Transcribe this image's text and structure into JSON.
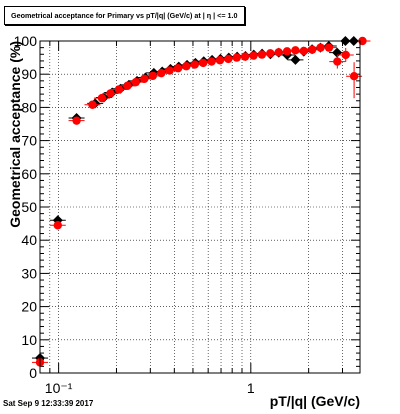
{
  "title": "Geometrical acceptance for Primary vs pT/|q| (GeV/c) at | η | <= 1.0",
  "timestamp": "Sat Sep  9 12:33:39 2017",
  "chart_data": {
    "type": "scatter",
    "title": "Geometrical acceptance for Primary vs pT/|q| (GeV/c) at | η | <= 1.0",
    "xlabel": "pT/|q| (GeV/c)",
    "ylabel": "Geometrical acceptance (%)",
    "xscale": "log",
    "xlim": [
      0.08,
      3.7
    ],
    "ylim": [
      0,
      100
    ],
    "x_tick_labels": [
      {
        "value": 0.1,
        "label": "10⁻¹"
      },
      {
        "value": 1,
        "label": "1"
      }
    ],
    "y_ticks": [
      0,
      10,
      20,
      30,
      40,
      50,
      60,
      70,
      80,
      90,
      100
    ],
    "grid": true,
    "colors": {
      "series_black": "#000000",
      "series_red": "#ff0000"
    },
    "series": [
      {
        "color": "#000000",
        "marker": "diamond",
        "points": [
          {
            "x": 0.08,
            "y": 4.5
          },
          {
            "x": 0.099,
            "y": 46.0
          },
          {
            "x": 0.124,
            "y": 76.8
          },
          {
            "x": 0.155,
            "y": 81.2
          },
          {
            "x": 0.172,
            "y": 83.0
          },
          {
            "x": 0.19,
            "y": 84.5
          },
          {
            "x": 0.21,
            "y": 85.6
          },
          {
            "x": 0.232,
            "y": 86.8
          },
          {
            "x": 0.256,
            "y": 88.0
          },
          {
            "x": 0.283,
            "y": 89.0
          },
          {
            "x": 0.313,
            "y": 90.4
          },
          {
            "x": 0.346,
            "y": 90.8
          },
          {
            "x": 0.382,
            "y": 91.6
          },
          {
            "x": 0.422,
            "y": 92.3
          },
          {
            "x": 0.466,
            "y": 92.8
          },
          {
            "x": 0.515,
            "y": 93.4
          },
          {
            "x": 0.569,
            "y": 93.9
          },
          {
            "x": 0.629,
            "y": 94.3
          },
          {
            "x": 0.695,
            "y": 94.6
          },
          {
            "x": 0.768,
            "y": 95.0
          },
          {
            "x": 0.849,
            "y": 95.3
          },
          {
            "x": 0.938,
            "y": 95.5
          },
          {
            "x": 1.036,
            "y": 95.9
          },
          {
            "x": 1.145,
            "y": 96.2
          },
          {
            "x": 1.265,
            "y": 96.0
          },
          {
            "x": 1.398,
            "y": 96.5
          },
          {
            "x": 1.545,
            "y": 95.8
          },
          {
            "x": 1.707,
            "y": 94.3
          },
          {
            "x": 1.886,
            "y": 96.8
          },
          {
            "x": 2.084,
            "y": 97.5
          },
          {
            "x": 2.303,
            "y": 98.0
          },
          {
            "x": 2.545,
            "y": 98.5
          },
          {
            "x": 2.812,
            "y": 96.5
          },
          {
            "x": 3.107,
            "y": 100.0
          },
          {
            "x": 3.433,
            "y": 100.0
          }
        ]
      },
      {
        "color": "#ff0000",
        "marker": "circle",
        "points": [
          {
            "x": 0.08,
            "y": 3.2
          },
          {
            "x": 0.099,
            "y": 44.5
          },
          {
            "x": 0.124,
            "y": 76.0
          },
          {
            "x": 0.15,
            "y": 80.8
          },
          {
            "x": 0.168,
            "y": 82.8
          },
          {
            "x": 0.186,
            "y": 84.2
          },
          {
            "x": 0.206,
            "y": 85.4
          },
          {
            "x": 0.228,
            "y": 86.5
          },
          {
            "x": 0.252,
            "y": 87.6
          },
          {
            "x": 0.279,
            "y": 88.6
          },
          {
            "x": 0.309,
            "y": 89.5
          },
          {
            "x": 0.342,
            "y": 90.3
          },
          {
            "x": 0.378,
            "y": 91.1
          },
          {
            "x": 0.418,
            "y": 91.8
          },
          {
            "x": 0.462,
            "y": 92.4
          },
          {
            "x": 0.511,
            "y": 92.9
          },
          {
            "x": 0.565,
            "y": 93.4
          },
          {
            "x": 0.625,
            "y": 93.8
          },
          {
            "x": 0.691,
            "y": 94.2
          },
          {
            "x": 0.764,
            "y": 94.6
          },
          {
            "x": 0.845,
            "y": 95.0
          },
          {
            "x": 0.934,
            "y": 95.3
          },
          {
            "x": 1.033,
            "y": 95.6
          },
          {
            "x": 1.142,
            "y": 95.9
          },
          {
            "x": 1.263,
            "y": 96.3
          },
          {
            "x": 1.396,
            "y": 96.6
          },
          {
            "x": 1.544,
            "y": 96.9
          },
          {
            "x": 1.707,
            "y": 97.2
          },
          {
            "x": 1.887,
            "y": 97.0
          },
          {
            "x": 2.087,
            "y": 97.4
          },
          {
            "x": 2.307,
            "y": 98.0
          },
          {
            "x": 2.551,
            "y": 98.0
          },
          {
            "x": 2.82,
            "y": 93.8
          },
          {
            "x": 3.118,
            "y": 95.8
          },
          {
            "x": 3.447,
            "y": 89.4
          },
          {
            "x": 3.811,
            "y": 100.0
          }
        ]
      }
    ]
  }
}
